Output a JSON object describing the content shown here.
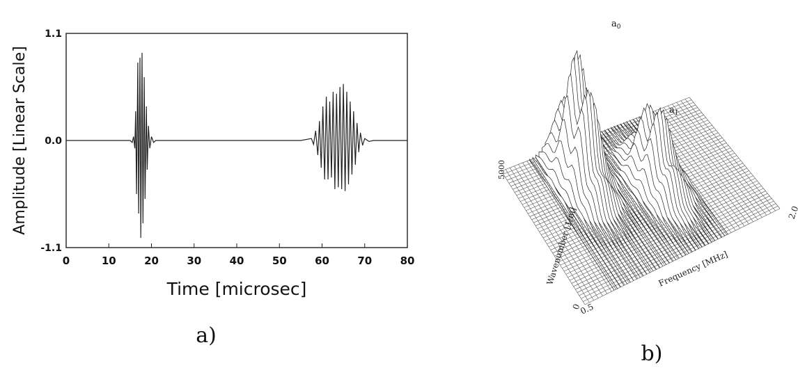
{
  "panel_a": {
    "caption": "a)",
    "chart_data": {
      "type": "line",
      "title": "",
      "xlabel": "Time [microsec]",
      "ylabel": "Amplitude [Linear Scale]",
      "xlim": [
        0,
        80
      ],
      "ylim": [
        -1.1,
        1.1
      ],
      "xticks": [
        "0",
        "10",
        "20",
        "30",
        "40",
        "50",
        "60",
        "70",
        "80"
      ],
      "yticks": [
        "1.1",
        "0.0",
        "-1.1"
      ],
      "grid": false,
      "series": [
        {
          "x": [
            0,
            10,
            15.0,
            15.5,
            15.8,
            16.1,
            16.3,
            16.5,
            16.8,
            17.0,
            17.3,
            17.5,
            17.8,
            18.0,
            18.3,
            18.5,
            18.8,
            19.0,
            19.3,
            19.6,
            20.0,
            20.5,
            21.0,
            30,
            40,
            50,
            55,
            57.5,
            58.0,
            58.5,
            59.0,
            59.4,
            59.8,
            60.2,
            60.6,
            61.0,
            61.4,
            61.8,
            62.2,
            62.6,
            63.0,
            63.4,
            63.8,
            64.2,
            64.6,
            65.0,
            65.4,
            65.8,
            66.2,
            66.6,
            67.0,
            67.4,
            67.8,
            68.2,
            68.6,
            69.0,
            69.5,
            70.0,
            71.0,
            72.0,
            80
          ],
          "y": [
            0,
            0,
            0,
            -0.02,
            0.04,
            -0.08,
            0.3,
            -0.55,
            0.8,
            -0.75,
            0.85,
            -1.0,
            0.9,
            -0.85,
            0.65,
            -0.6,
            0.35,
            -0.3,
            0.15,
            -0.08,
            0.04,
            -0.02,
            0,
            0,
            0,
            0,
            0,
            0.02,
            -0.04,
            0.1,
            -0.15,
            0.2,
            -0.28,
            0.35,
            -0.4,
            0.45,
            -0.4,
            0.4,
            -0.38,
            0.5,
            -0.5,
            0.48,
            -0.48,
            0.55,
            -0.5,
            0.58,
            -0.52,
            0.5,
            -0.45,
            0.4,
            -0.35,
            0.3,
            -0.25,
            0.18,
            -0.12,
            0.08,
            -0.05,
            0.02,
            -0.01,
            0,
            0
          ]
        }
      ]
    }
  },
  "panel_b": {
    "caption": "b)",
    "chart_data": {
      "type": "surface",
      "title": "",
      "xlabel": "Frequency [MHz]",
      "ylabel": "Wavenumber [1/m]",
      "xticks": [
        "0.5",
        "2.0"
      ],
      "yticks": [
        "0",
        "5000"
      ],
      "peaks": [
        {
          "label": "a0",
          "x": 0.95,
          "y": 3700,
          "height": 1.0
        },
        {
          "label": "a1",
          "x": 1.4,
          "y": 2600,
          "height": 0.65
        }
      ]
    }
  }
}
